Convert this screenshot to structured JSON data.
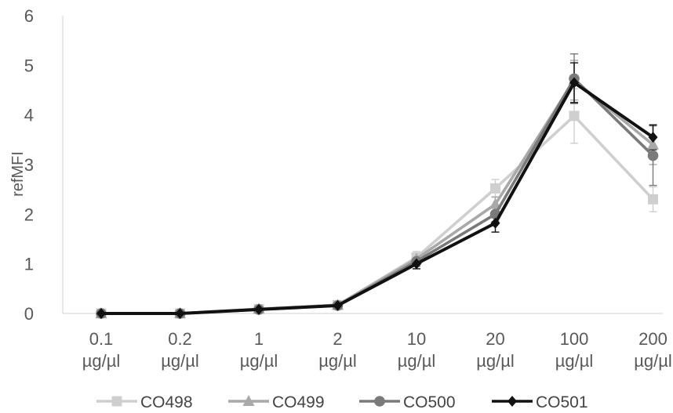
{
  "chart_data": {
    "type": "line",
    "title": "",
    "xlabel": "",
    "ylabel": "refMFI",
    "ylim": [
      0,
      6
    ],
    "yticks": [
      0,
      1,
      2,
      3,
      4,
      5,
      6
    ],
    "grid": false,
    "legend_position": "bottom",
    "categories": [
      [
        "0.1",
        "µg/µl"
      ],
      [
        "0.2",
        "µg/µl"
      ],
      [
        "1",
        "µg/µl"
      ],
      [
        "2",
        "µg/µl"
      ],
      [
        "10",
        "µg/µl"
      ],
      [
        "20",
        "µg/µl"
      ],
      [
        "100",
        "µg/µl"
      ],
      [
        "200",
        "µg/µl"
      ]
    ],
    "series": [
      {
        "name": "CO498",
        "color": "#cfcfcf",
        "marker": "square",
        "values": [
          0.0,
          0.0,
          0.09,
          0.17,
          1.13,
          2.52,
          3.98,
          2.3
        ],
        "errors": [
          0,
          0,
          0,
          0,
          0.12,
          0.18,
          0.55,
          0.25
        ]
      },
      {
        "name": "CO499",
        "color": "#a9a9a9",
        "marker": "triangle",
        "values": [
          0.0,
          0.0,
          0.09,
          0.17,
          1.1,
          2.2,
          4.7,
          3.4
        ],
        "errors": [
          0,
          0,
          0,
          0,
          0.12,
          0.15,
          0.4,
          0.4
        ]
      },
      {
        "name": "CO500",
        "color": "#7a7a7a",
        "marker": "circle",
        "values": [
          0.0,
          0.0,
          0.08,
          0.16,
          1.05,
          2.0,
          4.73,
          3.18
        ],
        "errors": [
          0,
          0,
          0,
          0,
          0.1,
          0.15,
          0.5,
          0.6
        ]
      },
      {
        "name": "CO501",
        "color": "#111111",
        "marker": "diamond",
        "values": [
          0.0,
          0.0,
          0.08,
          0.16,
          1.0,
          1.82,
          4.65,
          3.55
        ],
        "errors": [
          0,
          0,
          0,
          0,
          0.1,
          0.18,
          0.4,
          0.25
        ]
      }
    ]
  }
}
